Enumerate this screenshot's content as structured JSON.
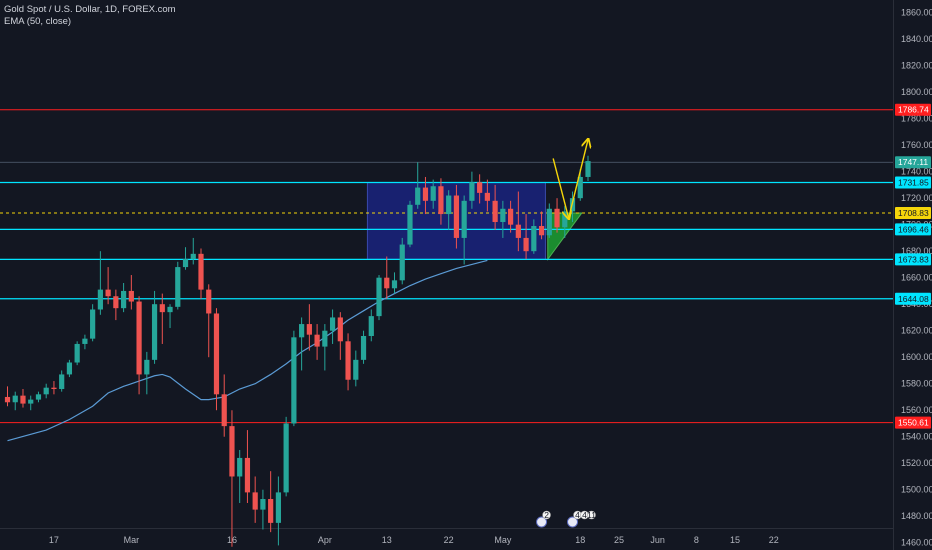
{
  "header": {
    "symbol": "Gold Spot / U.S. Dollar, 1D, FOREX.com",
    "indicator": "EMA (50, close)"
  },
  "colors": {
    "background": "#131722",
    "bull": "#26a69a",
    "bear": "#ef5350",
    "ema": "#5b9bd5",
    "support": "#00e5ff",
    "extreme": "#ff1f1f",
    "range_box": "#1a237e",
    "arrow": "#f5d60a",
    "triangle": "#1b8c2f",
    "axis_text": "#b2b5be"
  },
  "chart_data": {
    "type": "candlestick",
    "ylim": [
      1450,
      1865
    ],
    "y_ticks": [
      1460,
      1480,
      1500,
      1520,
      1540,
      1560,
      1580,
      1600,
      1620,
      1640,
      1660,
      1680,
      1700,
      1720,
      1740,
      1760,
      1780,
      1800,
      1820,
      1840,
      1860
    ],
    "x_ticks": [
      {
        "i": 6,
        "label": "17"
      },
      {
        "i": 16,
        "label": "Mar"
      },
      {
        "i": 29,
        "label": "16"
      },
      {
        "i": 41,
        "label": "Apr"
      },
      {
        "i": 49,
        "label": "13"
      },
      {
        "i": 57,
        "label": "22"
      },
      {
        "i": 64,
        "label": "May"
      },
      {
        "i": 74,
        "label": "18"
      },
      {
        "i": 79,
        "label": "25"
      },
      {
        "i": 84,
        "label": "Jun"
      },
      {
        "i": 89,
        "label": "8"
      },
      {
        "i": 94,
        "label": "15"
      },
      {
        "i": 99,
        "label": "22"
      }
    ],
    "candles": [
      [
        1570,
        1578,
        1563,
        1566
      ],
      [
        1566,
        1574,
        1560,
        1571
      ],
      [
        1571,
        1576,
        1562,
        1565
      ],
      [
        1565,
        1571,
        1560,
        1568
      ],
      [
        1568,
        1574,
        1566,
        1572
      ],
      [
        1572,
        1580,
        1569,
        1577
      ],
      [
        1577,
        1582,
        1572,
        1576
      ],
      [
        1576,
        1590,
        1574,
        1587
      ],
      [
        1587,
        1598,
        1585,
        1596
      ],
      [
        1596,
        1612,
        1594,
        1610
      ],
      [
        1610,
        1617,
        1606,
        1614
      ],
      [
        1614,
        1640,
        1612,
        1636
      ],
      [
        1636,
        1680,
        1632,
        1651
      ],
      [
        1651,
        1668,
        1640,
        1646
      ],
      [
        1646,
        1651,
        1628,
        1637
      ],
      [
        1637,
        1656,
        1634,
        1650
      ],
      [
        1650,
        1662,
        1636,
        1642
      ],
      [
        1642,
        1646,
        1572,
        1587
      ],
      [
        1587,
        1604,
        1572,
        1598
      ],
      [
        1598,
        1650,
        1595,
        1640
      ],
      [
        1640,
        1648,
        1610,
        1634
      ],
      [
        1634,
        1640,
        1622,
        1638
      ],
      [
        1638,
        1672,
        1636,
        1668
      ],
      [
        1668,
        1683,
        1666,
        1674
      ],
      [
        1674,
        1690,
        1670,
        1678
      ],
      [
        1678,
        1682,
        1644,
        1651
      ],
      [
        1651,
        1655,
        1600,
        1633
      ],
      [
        1633,
        1637,
        1560,
        1572
      ],
      [
        1572,
        1587,
        1540,
        1548
      ],
      [
        1548,
        1560,
        1457,
        1510
      ],
      [
        1510,
        1530,
        1490,
        1524
      ],
      [
        1524,
        1545,
        1490,
        1498
      ],
      [
        1498,
        1510,
        1475,
        1485
      ],
      [
        1485,
        1500,
        1470,
        1493
      ],
      [
        1493,
        1514,
        1468,
        1475
      ],
      [
        1475,
        1510,
        1458,
        1498
      ],
      [
        1498,
        1555,
        1495,
        1550
      ],
      [
        1550,
        1620,
        1548,
        1615
      ],
      [
        1615,
        1630,
        1590,
        1625
      ],
      [
        1625,
        1640,
        1605,
        1617
      ],
      [
        1617,
        1625,
        1598,
        1608
      ],
      [
        1608,
        1625,
        1590,
        1620
      ],
      [
        1620,
        1636,
        1610,
        1630
      ],
      [
        1630,
        1634,
        1598,
        1612
      ],
      [
        1612,
        1618,
        1575,
        1583
      ],
      [
        1583,
        1605,
        1578,
        1598
      ],
      [
        1598,
        1620,
        1595,
        1616
      ],
      [
        1616,
        1636,
        1612,
        1631
      ],
      [
        1631,
        1662,
        1628,
        1660
      ],
      [
        1660,
        1676,
        1644,
        1652
      ],
      [
        1652,
        1664,
        1648,
        1658
      ],
      [
        1658,
        1690,
        1655,
        1685
      ],
      [
        1685,
        1718,
        1683,
        1715
      ],
      [
        1715,
        1747,
        1712,
        1728
      ],
      [
        1728,
        1736,
        1708,
        1718
      ],
      [
        1718,
        1734,
        1712,
        1729
      ],
      [
        1729,
        1735,
        1700,
        1708
      ],
      [
        1708,
        1726,
        1696,
        1722
      ],
      [
        1722,
        1730,
        1682,
        1690
      ],
      [
        1690,
        1722,
        1670,
        1718
      ],
      [
        1718,
        1740,
        1712,
        1732
      ],
      [
        1732,
        1738,
        1716,
        1724
      ],
      [
        1724,
        1734,
        1710,
        1718
      ],
      [
        1718,
        1730,
        1696,
        1702
      ],
      [
        1702,
        1718,
        1690,
        1712
      ],
      [
        1712,
        1718,
        1694,
        1700
      ],
      [
        1700,
        1725,
        1680,
        1690
      ],
      [
        1690,
        1708,
        1674,
        1680
      ],
      [
        1680,
        1704,
        1678,
        1699
      ],
      [
        1699,
        1710,
        1689,
        1692
      ],
      [
        1692,
        1716,
        1690,
        1712
      ],
      [
        1712,
        1720,
        1694,
        1698
      ],
      [
        1698,
        1714,
        1690,
        1710
      ],
      [
        1710,
        1725,
        1702,
        1720
      ],
      [
        1720,
        1742,
        1718,
        1736
      ],
      [
        1736,
        1752,
        1733,
        1748
      ]
    ],
    "ema": [
      [
        0,
        1537
      ],
      [
        5,
        1545
      ],
      [
        8,
        1553
      ],
      [
        11,
        1563
      ],
      [
        13,
        1573
      ],
      [
        15,
        1578
      ],
      [
        17,
        1582
      ],
      [
        19,
        1586
      ],
      [
        20,
        1587
      ],
      [
        21,
        1585
      ],
      [
        23,
        1576
      ],
      [
        25,
        1568
      ],
      [
        26,
        1568
      ],
      [
        28,
        1570
      ],
      [
        30,
        1576
      ],
      [
        32,
        1580
      ],
      [
        34,
        1587
      ],
      [
        36,
        1595
      ],
      [
        38,
        1604
      ],
      [
        40,
        1611
      ],
      [
        42,
        1619
      ],
      [
        44,
        1628
      ],
      [
        46,
        1635
      ],
      [
        48,
        1642
      ],
      [
        50,
        1648
      ],
      [
        52,
        1654
      ],
      [
        54,
        1659
      ],
      [
        56,
        1663
      ],
      [
        58,
        1667
      ],
      [
        60,
        1670
      ],
      [
        62,
        1673
      ]
    ],
    "levels": [
      {
        "price": 1786.74,
        "label": "1786.74",
        "kind": "extreme"
      },
      {
        "price": 1747.11,
        "label": "1747.11",
        "kind": "current"
      },
      {
        "price": 1731.85,
        "label": "1731.85",
        "kind": "support"
      },
      {
        "price": 1708.83,
        "label": "1708.83",
        "kind": "dashed"
      },
      {
        "price": 1696.46,
        "label": "1696.46",
        "kind": "support"
      },
      {
        "price": 1673.83,
        "label": "1673.83",
        "kind": "support"
      },
      {
        "price": 1644.08,
        "label": "1644.08",
        "kind": "support"
      },
      {
        "price": 1550.61,
        "label": "1550.61",
        "kind": "extreme"
      }
    ],
    "range_box": {
      "i_start": 46.5,
      "i_end": 69.5,
      "top": 1731.85,
      "bottom": 1673.83
    },
    "triangle": [
      [
        69.8,
        1708.83
      ],
      [
        74.2,
        1708.83
      ],
      [
        69.8,
        1673.83
      ]
    ],
    "arrows": [
      {
        "points": [
          [
            70.5,
            1750
          ],
          [
            72.5,
            1705
          ]
        ]
      },
      {
        "points": [
          [
            72.5,
            1705
          ],
          [
            75.0,
            1764
          ]
        ]
      }
    ],
    "badges": [
      {
        "i": 69,
        "texts": [
          "2"
        ]
      },
      {
        "i": 73,
        "texts": [
          "4",
          "4",
          "11"
        ]
      }
    ]
  }
}
